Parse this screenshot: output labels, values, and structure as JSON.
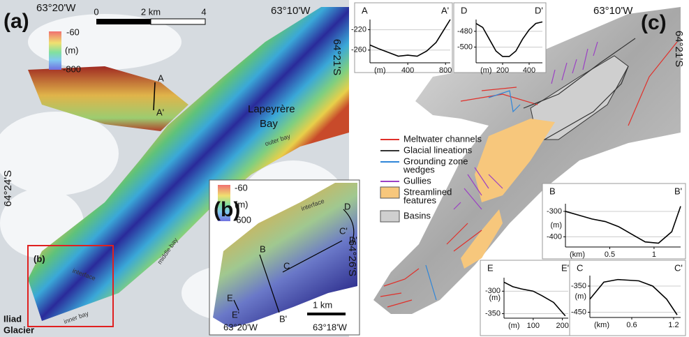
{
  "panel_a": {
    "label": "(a)",
    "lon_left": "63°20'W",
    "lon_right": "63°10'W",
    "lat_top": "64°21'S",
    "lat_mid": "64°24'S",
    "scale": {
      "start": "0",
      "mid": "2 km",
      "end": "4"
    },
    "colorbar": {
      "top": "-60",
      "unit": "(m)",
      "bottom": "-800"
    },
    "place": [
      "Lapeyrère",
      "Bay"
    ],
    "outer": "outer bay",
    "middle": "middle bay",
    "inner": "inner bay",
    "glacier": [
      "Iliad",
      "Glacier"
    ],
    "profile_start": "A",
    "profile_end": "A'",
    "inset": "(b)",
    "interface": "interface"
  },
  "panel_b": {
    "label": "(b)",
    "colorbar": {
      "top": "-60",
      "unit": "(m)",
      "bottom": "-600"
    },
    "profiles": [
      "B",
      "B'",
      "C",
      "C'",
      "D",
      "D'",
      "E",
      "E'"
    ],
    "interface": "interface",
    "lat": "64°26'S",
    "scale": "1 km",
    "lon_left": "63°20'W",
    "lon_right": "63°18'W"
  },
  "panel_c": {
    "label": "(c)",
    "lon": "63°10'W",
    "lat": "64°21'S",
    "legend": [
      {
        "label": [
          "Meltwater channels"
        ],
        "color": "#e0302a",
        "kind": "line"
      },
      {
        "label": [
          "Glacial lineations"
        ],
        "color": "#333333",
        "kind": "line"
      },
      {
        "label": [
          "Grounding zone",
          "wedges"
        ],
        "color": "#2f86d8",
        "kind": "line"
      },
      {
        "label": [
          "Gullies"
        ],
        "color": "#9b3fc4",
        "kind": "line"
      },
      {
        "label": [
          "Streamlined",
          "features"
        ],
        "color": "#f7c77c",
        "kind": "patch"
      },
      {
        "label": [
          "Basins"
        ],
        "color": "#cfcfcf",
        "kind": "patch"
      }
    ]
  },
  "chart_data": [
    {
      "type": "line",
      "start_label": "A",
      "end_label": "A'",
      "xlabel": "(m)",
      "color": "#000000",
      "grid": true,
      "x": [
        0,
        100,
        200,
        300,
        400,
        500,
        600,
        700,
        800,
        850
      ],
      "values": [
        -250,
        -258,
        -265,
        -272,
        -270,
        -272,
        -262,
        -245,
        -215,
        -200
      ],
      "xlim": [
        0,
        850
      ],
      "ylim": [
        -285,
        -200
      ],
      "xticks": [
        400,
        800
      ],
      "yticks": [
        -220,
        -260
      ]
    },
    {
      "type": "line",
      "start_label": "D",
      "end_label": "D'",
      "xlabel": "(m)",
      "color": "#000000",
      "grid": true,
      "x": [
        0,
        50,
        100,
        150,
        200,
        250,
        300,
        350,
        400,
        450,
        500
      ],
      "values": [
        -470,
        -475,
        -490,
        -505,
        -512,
        -512,
        -505,
        -490,
        -478,
        -470,
        -468
      ],
      "xlim": [
        0,
        500
      ],
      "ylim": [
        -520,
        -465
      ],
      "xticks": [
        200,
        400
      ],
      "yticks": [
        -480,
        -500
      ]
    },
    {
      "type": "line",
      "start_label": "B",
      "end_label": "B'",
      "xlabel": "(km)",
      "ylabel": "(m)",
      "color": "#000000",
      "grid": true,
      "x": [
        0,
        0.15,
        0.3,
        0.45,
        0.6,
        0.75,
        0.9,
        1.05,
        1.2,
        1.3
      ],
      "values": [
        -300,
        -315,
        -330,
        -340,
        -360,
        -390,
        -420,
        -425,
        -380,
        -280
      ],
      "xlim": [
        0,
        1.3
      ],
      "ylim": [
        -440,
        -270
      ],
      "xticks": [
        0.5,
        1
      ],
      "yticks": [
        -300,
        -400
      ]
    },
    {
      "type": "line",
      "start_label": "E",
      "end_label": "E'",
      "xlabel": "(m)",
      "ylabel": "(m)",
      "color": "#000000",
      "grid": true,
      "x": [
        0,
        30,
        60,
        100,
        130,
        170,
        210
      ],
      "values": [
        -280,
        -290,
        -295,
        -300,
        -310,
        -325,
        -355
      ],
      "xlim": [
        0,
        220
      ],
      "ylim": [
        -360,
        -270
      ],
      "xticks": [
        100,
        200
      ],
      "yticks": [
        -300,
        -350
      ]
    },
    {
      "type": "line",
      "start_label": "C",
      "end_label": "C'",
      "xlabel": "(km)",
      "ylabel": "(m)",
      "color": "#000000",
      "grid": true,
      "x": [
        0,
        0.2,
        0.4,
        0.7,
        0.9,
        1.1,
        1.25
      ],
      "values": [
        -400,
        -335,
        -325,
        -330,
        -350,
        -400,
        -460
      ],
      "xlim": [
        0,
        1.3
      ],
      "ylim": [
        -470,
        -310
      ],
      "xticks": [
        0.6,
        1.2
      ],
      "yticks": [
        -350,
        -450
      ]
    }
  ]
}
